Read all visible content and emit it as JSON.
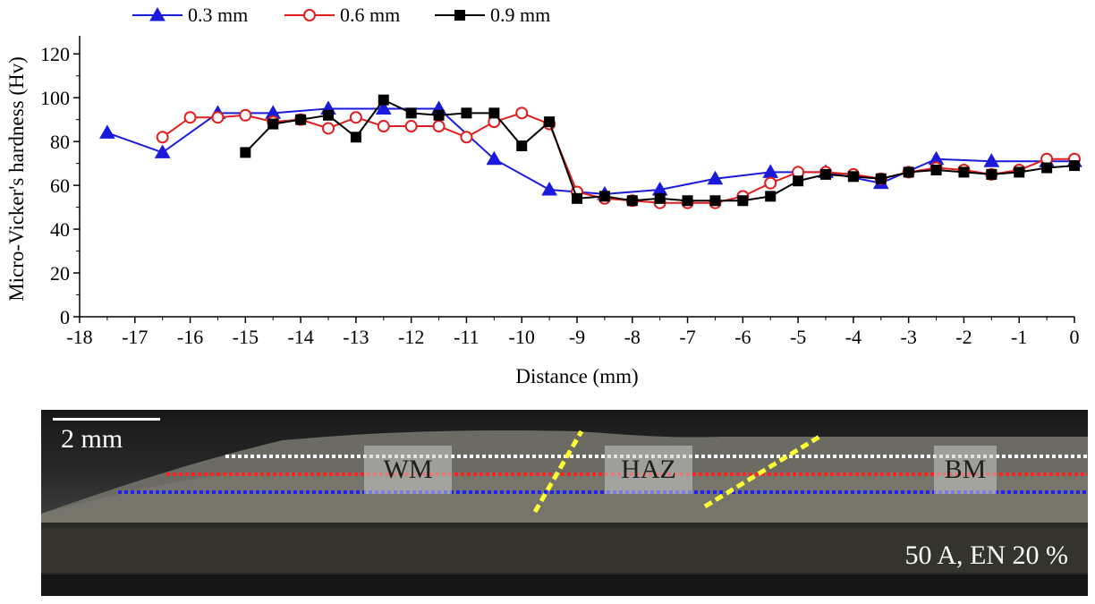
{
  "chart_data": {
    "type": "line",
    "xlabel": "Distance (mm)",
    "ylabel": "Micro-Vicker's hardness (Hv)",
    "xlim": [
      -18,
      0
    ],
    "ylim": [
      0,
      125
    ],
    "xticks": [
      -18,
      -17,
      -16,
      -15,
      -14,
      -13,
      -12,
      -11,
      -10,
      -9,
      -8,
      -7,
      -6,
      -5,
      -4,
      -3,
      -2,
      -1,
      0
    ],
    "yticks": [
      0,
      20,
      40,
      60,
      80,
      100,
      120
    ],
    "legend_position": "top-left",
    "series": [
      {
        "name": "0.3 mm",
        "color": "#1a1adc",
        "marker": "filled-triangle",
        "x": [
          -17.5,
          -16.5,
          -15.5,
          -14.5,
          -13.5,
          -12.5,
          -11.5,
          -10.5,
          -9.5,
          -8.5,
          -7.5,
          -6.5,
          -5.5,
          -4.5,
          -3.5,
          -2.5,
          -1.5,
          -0.5,
          0
        ],
        "y": [
          84,
          75,
          93,
          93,
          95,
          95,
          95,
          72,
          58,
          56,
          58,
          63,
          66,
          66,
          61,
          72,
          71,
          71,
          71
        ]
      },
      {
        "name": "0.6 mm",
        "color": "#e01e1e",
        "marker": "open-circle",
        "x": [
          -16.5,
          -16,
          -15.5,
          -15,
          -14.5,
          -14,
          -13.5,
          -13,
          -12.5,
          -12,
          -11.5,
          -11,
          -10.5,
          -10,
          -9.5,
          -9,
          -8.5,
          -8,
          -7.5,
          -7,
          -6.5,
          -6,
          -5.5,
          -5,
          -4.5,
          -4,
          -3.5,
          -3,
          -2.5,
          -2,
          -1.5,
          -1,
          -0.5,
          0
        ],
        "y": [
          82,
          91,
          91,
          92,
          89,
          90,
          86,
          91,
          87,
          87,
          87,
          82,
          89,
          93,
          88,
          57,
          54,
          53,
          52,
          52,
          52,
          55,
          61,
          66,
          66,
          65,
          63,
          66,
          68,
          67,
          65,
          67,
          72,
          72
        ]
      },
      {
        "name": "0.9 mm",
        "color": "#000000",
        "marker": "filled-square",
        "x": [
          -15,
          -14.5,
          -14,
          -13.5,
          -13,
          -12.5,
          -12,
          -11.5,
          -11,
          -10.5,
          -10,
          -9.5,
          -9,
          -8.5,
          -8,
          -7.5,
          -7,
          -6.5,
          -6,
          -5.5,
          -5,
          -4.5,
          -4,
          -3.5,
          -3,
          -2.5,
          -2,
          -1.5,
          -1,
          -0.5,
          0
        ],
        "y": [
          75,
          88,
          90,
          92,
          82,
          99,
          93,
          92,
          93,
          93,
          78,
          89,
          54,
          55,
          53,
          54,
          53,
          53,
          53,
          55,
          62,
          65,
          64,
          63,
          66,
          67,
          66,
          65,
          66,
          68,
          69
        ]
      }
    ]
  },
  "micrograph": {
    "scale_bar": "2 mm",
    "zones": [
      "WM",
      "HAZ",
      "BM"
    ],
    "condition": "50 A, EN 20 %"
  }
}
